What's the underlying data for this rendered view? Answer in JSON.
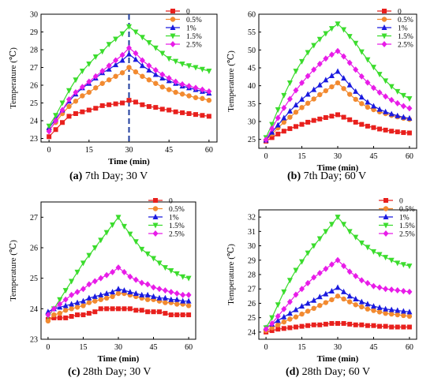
{
  "chart_data": [
    {
      "type": "line",
      "panel": "a",
      "caption_letter": "(a)",
      "caption_text": " 7th Day; 30 V",
      "xlabel": "Time (min)",
      "ylabel": "Temperature (℃)",
      "xlim": [
        -3,
        63
      ],
      "ylim": [
        22.8,
        30
      ],
      "xticks": [
        0,
        15,
        30,
        45,
        60
      ],
      "yticks": [
        23,
        24,
        25,
        26,
        27,
        28,
        29,
        30
      ],
      "legend": "top-right",
      "vline": 30,
      "x": [
        0,
        2.5,
        5,
        7.5,
        10,
        12.5,
        15,
        17.5,
        20,
        22.5,
        25,
        27.5,
        30,
        32.5,
        35,
        37.5,
        40,
        42.5,
        45,
        47.5,
        50,
        52.5,
        55,
        57.5,
        60
      ],
      "series": [
        {
          "name": "0",
          "color": "#e8201d",
          "marker": "square",
          "values": [
            23.1,
            23.5,
            23.9,
            24.25,
            24.4,
            24.5,
            24.6,
            24.7,
            24.85,
            24.9,
            24.95,
            25.0,
            25.15,
            25.05,
            24.9,
            24.8,
            24.75,
            24.65,
            24.6,
            24.5,
            24.45,
            24.4,
            24.35,
            24.3,
            24.25
          ]
        },
        {
          "name": "0.5%",
          "color": "#f28a30",
          "marker": "circle",
          "values": [
            23.5,
            23.9,
            24.4,
            24.8,
            25.1,
            25.4,
            25.6,
            25.85,
            26.1,
            26.3,
            26.5,
            26.7,
            27.0,
            26.75,
            26.5,
            26.3,
            26.1,
            25.9,
            25.75,
            25.6,
            25.5,
            25.4,
            25.3,
            25.25,
            25.15
          ]
        },
        {
          "name": "1%",
          "color": "#1a1adf",
          "marker": "triangle-up",
          "values": [
            23.6,
            24.1,
            24.6,
            25.1,
            25.5,
            25.85,
            26.1,
            26.4,
            26.7,
            26.9,
            27.15,
            27.4,
            27.75,
            27.45,
            27.1,
            26.85,
            26.6,
            26.4,
            26.25,
            26.1,
            25.95,
            25.85,
            25.75,
            25.65,
            25.55
          ]
        },
        {
          "name": "1.5%",
          "color": "#3bdc2d",
          "marker": "triangle-down",
          "values": [
            23.7,
            24.3,
            25.0,
            25.7,
            26.3,
            26.8,
            27.2,
            27.6,
            27.9,
            28.3,
            28.6,
            28.9,
            29.3,
            29.0,
            28.7,
            28.4,
            28.1,
            27.8,
            27.5,
            27.35,
            27.2,
            27.1,
            27.0,
            26.9,
            26.8
          ]
        },
        {
          "name": "2.5%",
          "color": "#e81ce8",
          "marker": "diamond",
          "values": [
            23.4,
            24.0,
            24.6,
            25.2,
            25.6,
            25.9,
            26.2,
            26.5,
            26.8,
            27.1,
            27.4,
            27.7,
            28.1,
            27.8,
            27.4,
            27.1,
            26.85,
            26.6,
            26.4,
            26.2,
            26.05,
            25.95,
            25.85,
            25.75,
            25.65
          ]
        }
      ]
    },
    {
      "type": "line",
      "panel": "b",
      "caption_letter": "(b)",
      "caption_text": " 7th Day; 60 V",
      "xlabel": "Time (min)",
      "ylabel": "Temperature (℃)",
      "xlim": [
        -3,
        63
      ],
      "ylim": [
        22.5,
        60
      ],
      "xticks": [
        0,
        15,
        30,
        45,
        60
      ],
      "yticks": [
        25,
        30,
        35,
        40,
        45,
        50,
        55,
        60
      ],
      "legend": "top-right",
      "x": [
        0,
        2.5,
        5,
        7.5,
        10,
        12.5,
        15,
        17.5,
        20,
        22.5,
        25,
        27.5,
        30,
        32.5,
        35,
        37.5,
        40,
        42.5,
        45,
        47.5,
        50,
        52.5,
        55,
        57.5,
        60
      ],
      "series": [
        {
          "name": "0",
          "color": "#e8201d",
          "marker": "square",
          "values": [
            24.5,
            25.5,
            26.5,
            27.3,
            28.0,
            28.6,
            29.2,
            29.8,
            30.3,
            30.7,
            31.1,
            31.5,
            31.9,
            31.2,
            30.5,
            29.8,
            29.2,
            28.7,
            28.3,
            27.9,
            27.6,
            27.3,
            27.1,
            26.9,
            26.8
          ]
        },
        {
          "name": "0.5%",
          "color": "#f28a30",
          "marker": "circle",
          "values": [
            24.7,
            26.5,
            28.2,
            29.8,
            31.2,
            32.6,
            33.9,
            35.1,
            36.3,
            37.5,
            38.6,
            39.7,
            40.8,
            39.2,
            37.6,
            36.2,
            35.0,
            34.0,
            33.3,
            32.7,
            32.2,
            31.7,
            31.3,
            30.9,
            30.6
          ]
        },
        {
          "name": "1%",
          "color": "#1a1adf",
          "marker": "triangle-up",
          "values": [
            24.8,
            27.0,
            29.0,
            31.0,
            32.9,
            34.6,
            36.2,
            37.6,
            38.9,
            40.2,
            41.6,
            42.8,
            44.0,
            42.1,
            40.2,
            38.4,
            36.8,
            35.4,
            34.3,
            33.4,
            32.7,
            32.1,
            31.6,
            31.2,
            30.9
          ]
        },
        {
          "name": "1.5%",
          "color": "#3bdc2d",
          "marker": "triangle-down",
          "values": [
            25.5,
            29.2,
            33.3,
            37.3,
            40.8,
            44.1,
            46.8,
            49.3,
            51.3,
            53.0,
            54.6,
            56.0,
            57.3,
            55.7,
            53.8,
            51.9,
            49.5,
            47.3,
            45.2,
            43.2,
            41.4,
            39.8,
            38.4,
            37.3,
            36.4
          ]
        },
        {
          "name": "2.5%",
          "color": "#e81ce8",
          "marker": "diamond",
          "values": [
            24.9,
            28.0,
            31.0,
            33.8,
            36.3,
            38.7,
            40.8,
            42.7,
            44.5,
            46.1,
            47.6,
            48.7,
            49.7,
            48.2,
            46.4,
            44.5,
            42.6,
            40.9,
            39.4,
            38.1,
            37.0,
            36.0,
            35.1,
            34.3,
            33.7
          ]
        }
      ]
    },
    {
      "type": "line",
      "panel": "c",
      "caption_letter": "(c)",
      "caption_text": " 28th Day; 30 V",
      "xlabel": "Time (min)",
      "ylabel": "Temperature (℃)",
      "xlim": [
        -3,
        63
      ],
      "ylim": [
        23,
        27.5
      ],
      "xticks": [
        0,
        15,
        30,
        45,
        60
      ],
      "yticks": [
        23,
        24,
        25,
        26,
        27
      ],
      "legend": "top-right",
      "x": [
        0,
        2.5,
        5,
        7.5,
        10,
        12.5,
        15,
        17.5,
        20,
        22.5,
        25,
        27.5,
        30,
        32.5,
        35,
        37.5,
        40,
        42.5,
        45,
        47.5,
        50,
        52.5,
        55,
        57.5,
        60
      ],
      "series": [
        {
          "name": "0",
          "color": "#e8201d",
          "marker": "square",
          "values": [
            23.65,
            23.7,
            23.7,
            23.7,
            23.75,
            23.8,
            23.8,
            23.85,
            23.9,
            24.0,
            24.0,
            24.0,
            24.0,
            24.0,
            24.0,
            23.95,
            23.95,
            23.9,
            23.9,
            23.9,
            23.85,
            23.8,
            23.8,
            23.8,
            23.8
          ]
        },
        {
          "name": "0.5%",
          "color": "#f28a30",
          "marker": "circle",
          "values": [
            23.6,
            23.8,
            23.85,
            23.95,
            24.0,
            24.05,
            24.1,
            24.2,
            24.25,
            24.3,
            24.35,
            24.4,
            24.5,
            24.5,
            24.45,
            24.4,
            24.35,
            24.3,
            24.3,
            24.25,
            24.2,
            24.2,
            24.15,
            24.15,
            24.1
          ]
        },
        {
          "name": "1%",
          "color": "#1a1adf",
          "marker": "triangle-up",
          "values": [
            23.9,
            24.0,
            24.05,
            24.1,
            24.15,
            24.2,
            24.25,
            24.35,
            24.4,
            24.45,
            24.5,
            24.55,
            24.65,
            24.6,
            24.55,
            24.5,
            24.45,
            24.45,
            24.4,
            24.35,
            24.35,
            24.3,
            24.3,
            24.25,
            24.25
          ]
        },
        {
          "name": "1.5%",
          "color": "#3bdc2d",
          "marker": "triangle-down",
          "values": [
            23.75,
            24.0,
            24.3,
            24.6,
            24.9,
            25.2,
            25.5,
            25.75,
            26.0,
            26.25,
            26.5,
            26.75,
            27.0,
            26.7,
            26.45,
            26.2,
            25.95,
            25.8,
            25.65,
            25.5,
            25.35,
            25.25,
            25.15,
            25.05,
            25.0
          ]
        },
        {
          "name": "2.5%",
          "color": "#e81ce8",
          "marker": "diamond",
          "values": [
            23.8,
            24.0,
            24.15,
            24.3,
            24.45,
            24.55,
            24.65,
            24.8,
            24.9,
            25.0,
            25.1,
            25.2,
            25.35,
            25.2,
            25.05,
            24.95,
            24.85,
            24.8,
            24.7,
            24.65,
            24.6,
            24.55,
            24.5,
            24.45,
            24.45
          ]
        }
      ]
    },
    {
      "type": "line",
      "panel": "d",
      "caption_letter": "(d)",
      "caption_text": " 28th Day; 60 V",
      "xlabel": "Time (min)",
      "ylabel": "Temperature (℃)",
      "xlim": [
        -3,
        63
      ],
      "ylim": [
        23.5,
        32.5
      ],
      "xticks": [
        0,
        15,
        30,
        45,
        60
      ],
      "yticks": [
        24,
        25,
        26,
        27,
        28,
        29,
        30,
        31,
        32
      ],
      "legend": "top-right",
      "x": [
        0,
        2.5,
        5,
        7.5,
        10,
        12.5,
        15,
        17.5,
        20,
        22.5,
        25,
        27.5,
        30,
        32.5,
        35,
        37.5,
        40,
        42.5,
        45,
        47.5,
        50,
        52.5,
        55,
        57.5,
        60
      ],
      "series": [
        {
          "name": "0",
          "color": "#e8201d",
          "marker": "square",
          "values": [
            24.0,
            24.1,
            24.2,
            24.25,
            24.3,
            24.35,
            24.4,
            24.45,
            24.5,
            24.5,
            24.55,
            24.6,
            24.6,
            24.6,
            24.55,
            24.5,
            24.5,
            24.45,
            24.45,
            24.4,
            24.4,
            24.35,
            24.35,
            24.35,
            24.35
          ]
        },
        {
          "name": "0.5%",
          "color": "#f28a30",
          "marker": "circle",
          "values": [
            24.1,
            24.3,
            24.5,
            24.7,
            24.9,
            25.05,
            25.25,
            25.45,
            25.65,
            25.85,
            26.05,
            26.25,
            26.5,
            26.3,
            26.1,
            25.9,
            25.75,
            25.6,
            25.5,
            25.4,
            25.3,
            25.25,
            25.2,
            25.15,
            25.1
          ]
        },
        {
          "name": "1%",
          "color": "#1a1adf",
          "marker": "triangle-up",
          "values": [
            24.3,
            24.55,
            24.8,
            25.05,
            25.3,
            25.55,
            25.8,
            26.0,
            26.2,
            26.45,
            26.65,
            26.85,
            27.1,
            26.8,
            26.5,
            26.3,
            26.1,
            25.95,
            25.8,
            25.7,
            25.6,
            25.55,
            25.5,
            25.45,
            25.4
          ]
        },
        {
          "name": "1.5%",
          "color": "#3bdc2d",
          "marker": "triangle-down",
          "values": [
            24.3,
            25.0,
            25.9,
            26.8,
            27.6,
            28.3,
            28.9,
            29.5,
            30.0,
            30.5,
            31.0,
            31.5,
            32.0,
            31.5,
            31.0,
            30.6,
            30.2,
            29.9,
            29.6,
            29.4,
            29.2,
            29.0,
            28.8,
            28.7,
            28.6
          ]
        },
        {
          "name": "2.5%",
          "color": "#e81ce8",
          "marker": "diamond",
          "values": [
            24.2,
            24.6,
            25.1,
            25.6,
            26.1,
            26.6,
            27.0,
            27.4,
            27.8,
            28.1,
            28.4,
            28.7,
            29.0,
            28.6,
            28.2,
            27.9,
            27.6,
            27.4,
            27.2,
            27.1,
            27.0,
            26.95,
            26.9,
            26.85,
            26.8
          ]
        }
      ]
    }
  ]
}
